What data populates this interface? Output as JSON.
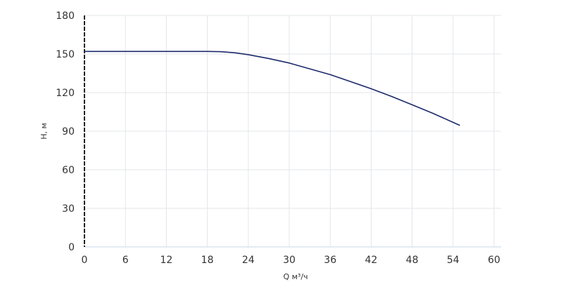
{
  "chart_data": {
    "type": "line",
    "x_label": "Q м³/ч",
    "y_label": "Н, м",
    "x": [
      0,
      6,
      12,
      18,
      20,
      22,
      24,
      27,
      30,
      33,
      36,
      39,
      42,
      45,
      48,
      51,
      55
    ],
    "series": [
      {
        "color": "#1b2a6b",
        "values": [
          152,
          152,
          152,
          152,
          151.8,
          151,
          149.5,
          146.5,
          143,
          138.5,
          134,
          128.5,
          123,
          117,
          110.5,
          104,
          94.5
        ]
      }
    ],
    "xlim": [
      0,
      60
    ],
    "xticks": [
      0,
      6,
      12,
      18,
      24,
      30,
      36,
      42,
      48,
      54,
      60
    ],
    "ylim": [
      0,
      180
    ],
    "yticks": [
      0,
      30,
      60,
      90,
      120,
      150,
      180
    ],
    "grid": true
  }
}
